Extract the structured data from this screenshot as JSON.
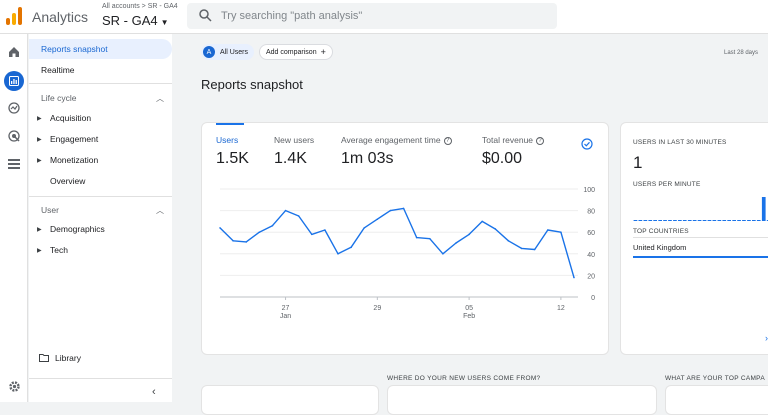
{
  "header": {
    "app_title": "Analytics",
    "account_crumb": "All accounts > SR - GA4",
    "property_name": "SR - GA4",
    "search_placeholder": "Try searching \"path analysis\""
  },
  "nav": {
    "reports_snapshot": "Reports snapshot",
    "realtime": "Realtime",
    "lifecycle_section": "Life cycle",
    "lifecycle_items": [
      "Acquisition",
      "Engagement",
      "Monetization",
      "Overview"
    ],
    "user_section": "User",
    "user_items": [
      "Demographics",
      "Tech"
    ],
    "library": "Library"
  },
  "toolbar": {
    "all_users": "All Users",
    "all_users_avatar": "A",
    "add_comparison": "Add comparison",
    "date_range": "Last 28 days"
  },
  "page": {
    "title": "Reports snapshot"
  },
  "metrics": [
    {
      "label": "Users",
      "value": "1.5K"
    },
    {
      "label": "New users",
      "value": "1.4K"
    },
    {
      "label": "Average engagement time",
      "value": "1m 03s"
    },
    {
      "label": "Total revenue",
      "value": "$0.00"
    }
  ],
  "chart_data": {
    "type": "line",
    "series": [
      {
        "name": "Users",
        "values": [
          64,
          52,
          51,
          60,
          66,
          80,
          75,
          58,
          62,
          40,
          46,
          64,
          72,
          80,
          82,
          55,
          54,
          40,
          50,
          58,
          70,
          63,
          52,
          45,
          44,
          62,
          60,
          18
        ]
      }
    ],
    "x_ticks": [
      {
        "index": 5,
        "label": "27",
        "sub": "Jan"
      },
      {
        "index": 12,
        "label": "29",
        "sub": ""
      },
      {
        "index": 19,
        "label": "05",
        "sub": "Feb"
      },
      {
        "index": 26,
        "label": "12",
        "sub": ""
      }
    ],
    "y_ticks": [
      0,
      20,
      40,
      60,
      80,
      100
    ],
    "ylim": [
      0,
      100
    ],
    "color": "#1a73e8"
  },
  "realtime": {
    "users_label": "USERS IN LAST 30 MINUTES",
    "users_value": "1",
    "per_minute_label": "USERS PER MINUTE",
    "per_minute": [
      0,
      0,
      0,
      0,
      0,
      0,
      0,
      0,
      0,
      0,
      0,
      0,
      0,
      0,
      0,
      0,
      0,
      0,
      0,
      0,
      0,
      0,
      0,
      0,
      0,
      0,
      1,
      0,
      0,
      0
    ],
    "top_countries_label": "TOP COUNTRIES",
    "top_country": "United Kingdom"
  },
  "bottom": {
    "new_users_title": "WHERE DO YOUR NEW USERS COME FROM?",
    "top_campaigns_title": "WHAT ARE YOUR TOP CAMPA"
  }
}
